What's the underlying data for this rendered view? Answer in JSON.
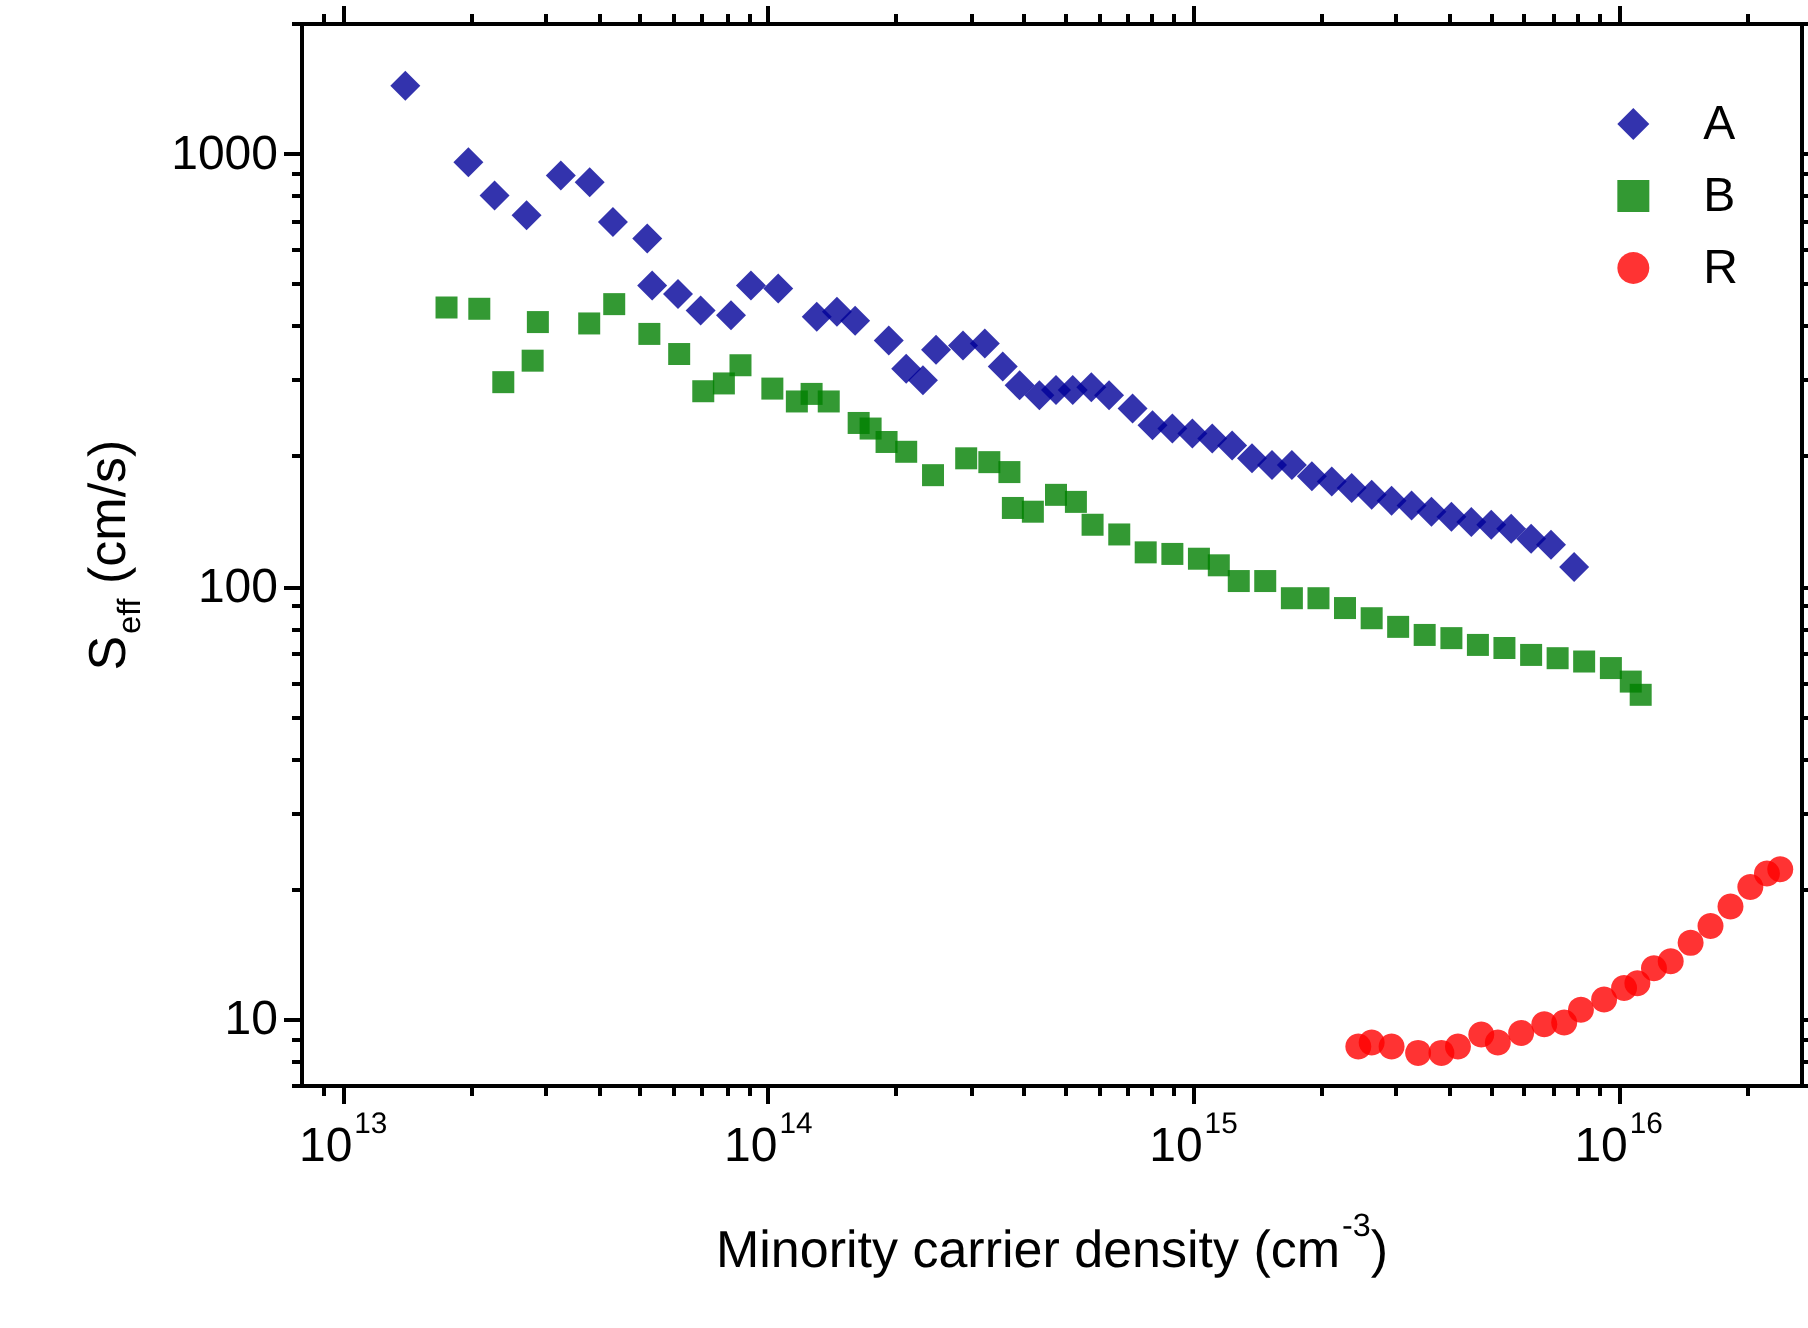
{
  "chart_data": {
    "type": "scatter",
    "xlabel": "Minority carrier density (cm$^{-3}$)",
    "ylabel": "S$_{eff}$ (cm/s)",
    "log": "xy",
    "xlim": [
      8000000000000.0,
      2.7e+16
    ],
    "ylim": [
      7,
      2000
    ],
    "xticks": [
      {
        "value": 9000000000000.0,
        "label": null
      },
      {
        "value": 10000000000000.0,
        "label": "10$^{13}$"
      },
      {
        "value": 20000000000000.0,
        "label": null
      },
      {
        "value": 30000000000000.0,
        "label": null
      },
      {
        "value": 40000000000000.0,
        "label": null
      },
      {
        "value": 50000000000000.0,
        "label": null
      },
      {
        "value": 60000000000000.0,
        "label": null
      },
      {
        "value": 70000000000000.0,
        "label": null
      },
      {
        "value": 80000000000000.0,
        "label": null
      },
      {
        "value": 90000000000000.0,
        "label": null
      },
      {
        "value": 100000000000000.0,
        "label": "10$^{14}$"
      },
      {
        "value": 200000000000000.0,
        "label": null
      },
      {
        "value": 300000000000000.0,
        "label": null
      },
      {
        "value": 400000000000000.0,
        "label": null
      },
      {
        "value": 500000000000000.0,
        "label": null
      },
      {
        "value": 600000000000000.0,
        "label": null
      },
      {
        "value": 700000000000000.0,
        "label": null
      },
      {
        "value": 800000000000000.0,
        "label": null
      },
      {
        "value": 900000000000000.0,
        "label": null
      },
      {
        "value": 1000000000000000.0,
        "label": "10$^{15}$"
      },
      {
        "value": 2000000000000000.0,
        "label": null
      },
      {
        "value": 3000000000000000.0,
        "label": null
      },
      {
        "value": 4000000000000000.0,
        "label": null
      },
      {
        "value": 5000000000000000.0,
        "label": null
      },
      {
        "value": 6000000000000000.0,
        "label": null
      },
      {
        "value": 7000000000000000.0,
        "label": null
      },
      {
        "value": 8000000000000000.0,
        "label": null
      },
      {
        "value": 9000000000000000.0,
        "label": null
      },
      {
        "value": 1e+16,
        "label": "10$^{16}$"
      },
      {
        "value": 2e+16,
        "label": null
      }
    ],
    "yticks": [
      {
        "value": 7,
        "label": null
      },
      {
        "value": 8,
        "label": null
      },
      {
        "value": 9,
        "label": null
      },
      10,
      {
        "value": 20,
        "label": null
      },
      {
        "value": 30,
        "label": null
      },
      {
        "value": 40,
        "label": null
      },
      {
        "value": 50,
        "label": null
      },
      {
        "value": 60,
        "label": null
      },
      {
        "value": 70,
        "label": null
      },
      {
        "value": 80,
        "label": null
      },
      {
        "value": 90,
        "label": null
      },
      100,
      {
        "value": 200,
        "label": null
      },
      {
        "value": 300,
        "label": null
      },
      {
        "value": 400,
        "label": null
      },
      {
        "value": 500,
        "label": null
      },
      {
        "value": 600,
        "label": null
      },
      {
        "value": 700,
        "label": null
      },
      {
        "value": 800,
        "label": null
      },
      {
        "value": 900,
        "label": null
      },
      1000,
      {
        "value": 2000,
        "label": null
      }
    ],
    "grid": false,
    "legend": "top right",
    "series": [
      {
        "name": "A",
        "color": "#000099",
        "marker": "diamond",
        "x": [
          14000000000000.0,
          19700000000000.0,
          22700000000000.0,
          27000000000000.0,
          32500000000000.0,
          38000000000000.0,
          43100000000000.0,
          51900000000000.0,
          53300000000000.0,
          61300000000000.0,
          69300000000000.0,
          81700000000000.0,
          91000000000000.0,
          105500000000000.0,
          130000000000000.0,
          145000000000000.0,
          160000000000000.0,
          192000000000000.0,
          211000000000000.0,
          231000000000000.0,
          248000000000000.0,
          287000000000000.0,
          323000000000000.0,
          356000000000000.0,
          390000000000000.0,
          434000000000000.0,
          475000000000000.0,
          520000000000000.0,
          575000000000000.0,
          633000000000000.0,
          719000000000000.0,
          801000000000000.0,
          892000000000000.0,
          994000000000000.0,
          1107000000000000.0,
          1233000000000000.0,
          1373000000000000.0,
          1530000000000000.0,
          1704000000000000.0,
          1899000000000000.0,
          2115000000000000.0,
          2356000000000000.0,
          2625000000000000.0,
          2924000000000000.0,
          3258000000000000.0,
          3629000000000000.0,
          4043000000000000.0,
          4503000000000000.0,
          5017000000000000.0,
          5589000000000000.0,
          6226000000000000.0,
          6934000000000000.0,
          7860000000000000.0
        ],
        "values": [
          1440,
          958,
          802,
          722,
          893,
          861,
          697,
          638,
          497,
          475,
          435,
          424,
          497,
          489,
          421,
          432,
          412,
          371,
          319,
          300,
          353,
          361,
          365,
          323,
          292,
          277,
          285,
          285,
          289,
          277,
          258,
          236,
          232,
          226,
          220,
          212,
          198,
          191,
          191,
          180,
          175,
          169,
          163,
          158,
          154,
          149,
          145,
          141,
          139,
          136,
          129,
          125,
          111
        ]
      },
      {
        "name": "B",
        "color": "#008000",
        "marker": "square",
        "x": [
          17500000000000.0,
          20900000000000.0,
          23800000000000.0,
          27900000000000.0,
          28700000000000.0,
          37900000000000.0,
          43400000000000.0,
          52500000000000.0,
          61700000000000.0,
          70300000000000.0,
          78600000000000.0,
          86000000000000.0,
          102200000000000.0,
          116700000000000.0,
          126400000000000.0,
          138700000000000.0,
          163100000000000.0,
          174000000000000.0,
          189700000000000.0,
          211000000000000.0,
          244000000000000.0,
          292000000000000.0,
          331000000000000.0,
          369000000000000.0,
          376000000000000.0,
          419000000000000.0,
          475000000000000.0,
          529000000000000.0,
          579000000000000.0,
          669000000000000.0,
          772000000000000.0,
          892000000000000.0,
          1030000000000000.0,
          1147000000000000.0,
          1278000000000000.0,
          1475000000000000.0,
          1704000000000000.0,
          1968000000000000.0,
          2272000000000000.0,
          2625000000000000.0,
          3030000000000000.0,
          3498000000000000.0,
          4043000000000000.0,
          4667000000000000.0,
          5388000000000000.0,
          6226000000000000.0,
          7187000000000000.0,
          8297000000000000.0,
          9590000000000000.0,
          1.068e+16,
          1.127e+16
        ],
        "values": [
          442,
          439,
          297,
          333,
          409,
          406,
          450,
          384,
          345,
          283,
          295,
          325,
          287,
          268,
          279,
          268,
          239,
          232,
          216,
          205,
          181,
          198,
          194,
          184,
          152,
          149,
          163,
          157,
          139,
          132,
          120,
          119,
          116,
          112,
          103,
          103,
          94.0,
          94.0,
          89.2,
          84.5,
          80.7,
          77.3,
          76.0,
          73.3,
          72.1,
          69.5,
          68.3,
          67.1,
          64.8,
          60.3,
          56.2
        ]
      },
      {
        "name": "R",
        "color": "#ff0000",
        "marker": "circle",
        "x": [
          2442000000000000.0,
          2625000000000000.0,
          2924000000000000.0,
          3376000000000000.0,
          3830000000000000.0,
          4189000000000000.0,
          4753000000000000.0,
          5199000000000000.0,
          5899000000000000.0,
          6686000000000000.0,
          7447000000000000.0,
          8154000000000000.0,
          9243000000000000.0,
          1.03e+16,
          1.107e+16,
          1.211e+16,
          1.326e+16,
          1.477e+16,
          1.645e+16,
          1.833e+16,
          2.041e+16,
          2.233e+16,
          2.4e+16
        ],
        "values": [
          8.64,
          8.83,
          8.64,
          8.35,
          8.35,
          8.64,
          9.21,
          8.83,
          9.28,
          9.72,
          9.82,
          10.5,
          11.1,
          11.8,
          12.1,
          13.1,
          13.6,
          15.0,
          16.4,
          18.2,
          20.2,
          21.7,
          22.2
        ]
      }
    ]
  }
}
